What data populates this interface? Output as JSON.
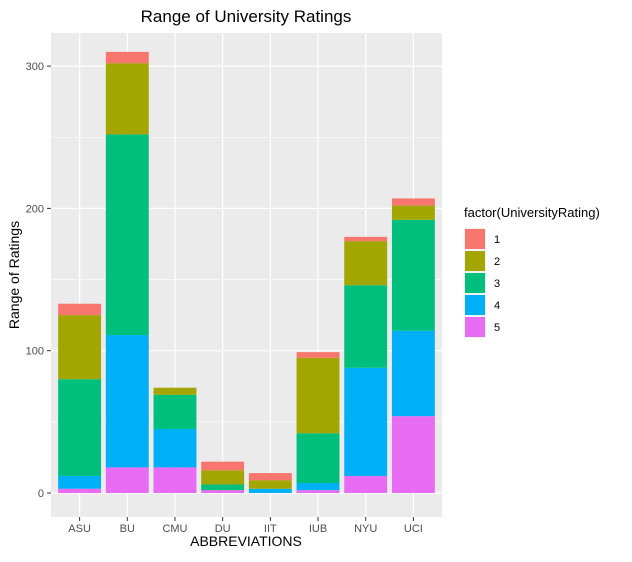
{
  "chart_data": {
    "type": "bar",
    "stacked": true,
    "title": "Range of University Ratings",
    "xlabel": "ABBREVIATIONS",
    "ylabel": "Range of Ratings",
    "categories": [
      "ASU",
      "BU",
      "CMU",
      "DU",
      "IIT",
      "IUB",
      "NYU",
      "UCI"
    ],
    "ylim": [
      0,
      325
    ],
    "y_ticks": [
      0,
      100,
      200,
      300
    ],
    "grid": true,
    "legend_title": "factor(UniversityRating)",
    "legend_position": "right",
    "series": [
      {
        "name": "5",
        "color": "#E76BF3",
        "values": [
          3,
          18,
          18,
          2,
          0,
          2,
          12,
          54
        ]
      },
      {
        "name": "4",
        "color": "#00B0F6",
        "values": [
          9,
          93,
          27,
          0,
          3,
          5,
          76,
          60
        ]
      },
      {
        "name": "3",
        "color": "#00BF7D",
        "values": [
          68,
          141,
          24,
          4,
          0,
          35,
          58,
          78
        ]
      },
      {
        "name": "2",
        "color": "#A3A500",
        "values": [
          45,
          50,
          5,
          10,
          6,
          53,
          31,
          10
        ]
      },
      {
        "name": "1",
        "color": "#F8766D",
        "values": [
          8,
          8,
          0,
          6,
          5,
          4,
          3,
          5
        ]
      }
    ],
    "legend_order": [
      "1",
      "2",
      "3",
      "4",
      "5"
    ]
  }
}
